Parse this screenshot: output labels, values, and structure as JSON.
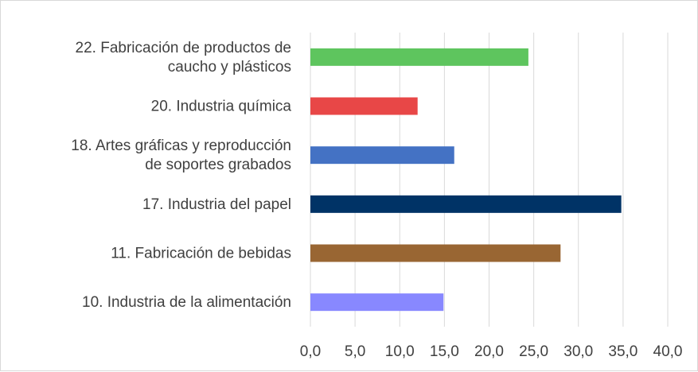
{
  "chart_data": {
    "type": "bar",
    "orientation": "horizontal",
    "categories": [
      [
        "22. Fabricación de productos de",
        "caucho y plásticos"
      ],
      [
        "20. Industria química"
      ],
      [
        "18. Artes gráficas y reproducción",
        "de soportes grabados"
      ],
      [
        "17. Industria del papel"
      ],
      [
        "11. Fabricación de bebidas"
      ],
      [
        "10. Industria de la alimentación"
      ]
    ],
    "values": [
      24.4,
      12.0,
      16.1,
      34.8,
      28.0,
      14.9
    ],
    "colors": [
      "#5ec55e",
      "#e84747",
      "#4472c4",
      "#003366",
      "#996633",
      "#8888ff"
    ],
    "xlim": [
      0,
      40
    ],
    "xticks": [
      "0,0",
      "5,0",
      "10,0",
      "15,0",
      "20,0",
      "25,0",
      "30,0",
      "35,0",
      "40,0"
    ],
    "grid": "vertical",
    "legend": "none"
  }
}
